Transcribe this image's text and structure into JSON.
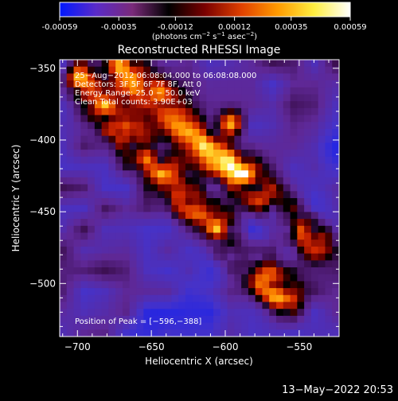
{
  "colorbar": {
    "ticks": [
      "-0.00059",
      "-0.00035",
      "-0.00012",
      "0.00012",
      "0.00035",
      "0.00059"
    ],
    "unit_text": "(photons cm",
    "unit_sup1": "−2",
    "unit_mid": " s",
    "unit_sup2": "−1",
    "unit_mid2": " asec",
    "unit_sup3": "−2",
    "unit_end": ")",
    "stops": [
      "#0018ff",
      "#5a2bc9",
      "#7a2a7a",
      "#000000",
      "#7a0000",
      "#e04000",
      "#ff9a00",
      "#ffee40",
      "#ffffff"
    ],
    "range": [
      -0.00059,
      0.00059
    ]
  },
  "chart_data": {
    "type": "heatmap",
    "title": "Reconstructed RHESSI Image",
    "xlabel": "Heliocentric X (arcsec)",
    "ylabel": "Heliocentric Y (arcsec)",
    "xlim": [
      -712,
      -523
    ],
    "ylim": [
      -537,
      -344
    ],
    "x_ticks": [
      -700,
      -650,
      -600,
      -550
    ],
    "y_ticks": [
      -500,
      -450,
      -400,
      -350
    ],
    "x_tick_labels": [
      "−700",
      "−650",
      "−600",
      "−550"
    ],
    "y_tick_labels": [
      "−500",
      "−450",
      "−400",
      "−350"
    ],
    "annotations": [
      "25−Aug−2012 06:08:04.000 to 06:08:08.000",
      "Detectors: 3F 5F 6F 7F 8F, Att 0",
      "Energy Range: 25.0 − 50.0 keV",
      "Clean    Total counts: 3.90E+03"
    ],
    "peak_label": "Position of Peak = [−596,−388]",
    "peak": [
      -596,
      -388
    ],
    "total_counts": 3900,
    "energy_range_kev": [
      25.0,
      50.0
    ],
    "bright_ridges": [
      {
        "from": [
          -700,
          -360
        ],
        "to": [
          -560,
          -510
        ]
      },
      {
        "from": [
          -670,
          -350
        ],
        "to": [
          -540,
          -470
        ]
      }
    ]
  },
  "footer": {
    "date": "13−May−2022 20:53"
  }
}
